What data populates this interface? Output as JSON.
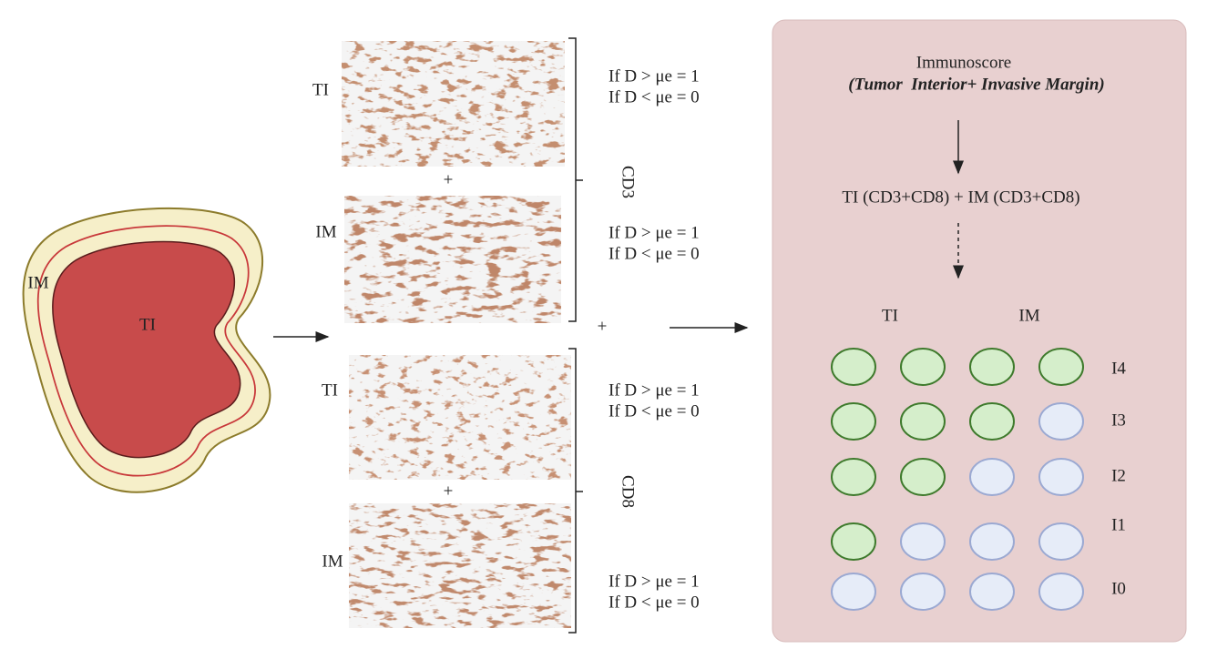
{
  "blob": {
    "outer_label": "IM",
    "inner_label": "TI"
  },
  "panels": [
    {
      "marker": "CD3",
      "joiner": "+",
      "images": [
        {
          "label": "TI",
          "rule": [
            "If D > μe = 1",
            "If D < μe = 0"
          ]
        },
        {
          "label": "IM",
          "rule": [
            "If D > μe = 1",
            "If D < μe = 0"
          ]
        }
      ]
    },
    {
      "marker": "CD8",
      "joiner": "+",
      "images": [
        {
          "label": "TI",
          "rule": [
            "If D > μe = 1",
            "If D < μe = 0"
          ]
        },
        {
          "label": "IM",
          "rule": [
            "If D > μe = 1",
            "If D < μe = 0"
          ]
        }
      ]
    }
  ],
  "group_joiner": "+",
  "score_box": {
    "title": "Immunoscore",
    "subtitle": "(Tumor  Interior+ Invasive Margin)",
    "formula": "TI (CD3+CD8) + IM (CD3+CD8)",
    "columns": [
      "TI",
      "IM"
    ],
    "rows": [
      {
        "label": "I4",
        "positive": 4
      },
      {
        "label": "I3",
        "positive": 3
      },
      {
        "label": "I2",
        "positive": 2
      },
      {
        "label": "I1",
        "positive": 1
      },
      {
        "label": "I0",
        "positive": 0
      }
    ]
  }
}
